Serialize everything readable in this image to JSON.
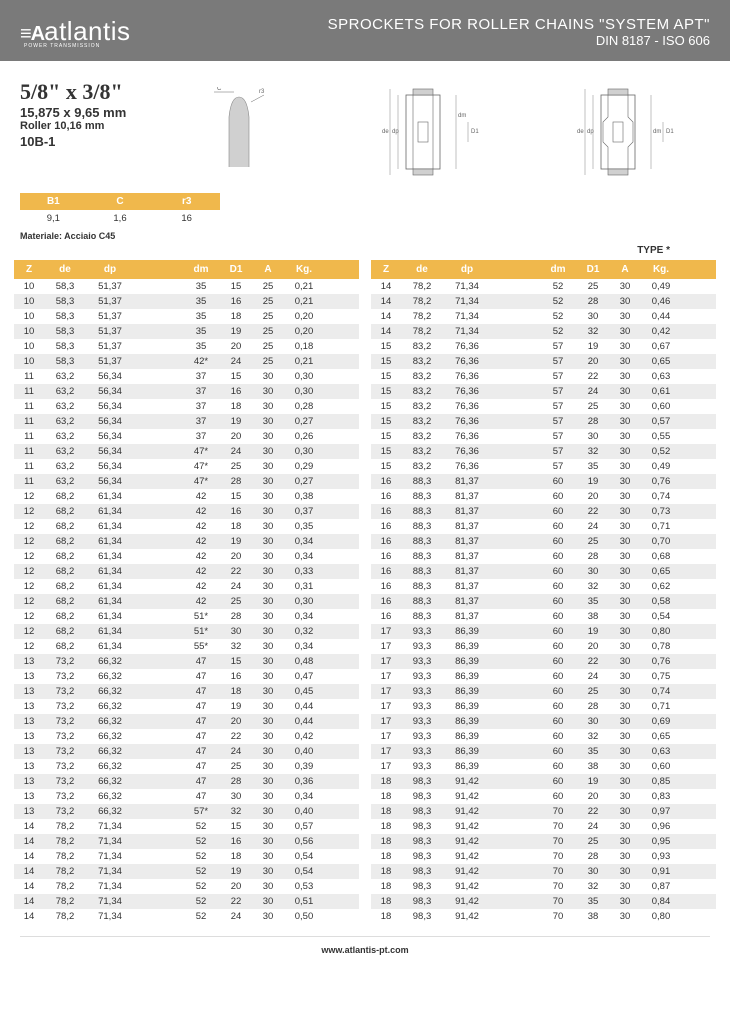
{
  "header": {
    "logo_text": "atlantis",
    "logo_mark": "≡A",
    "logo_sub": "POWER TRANSMISSION",
    "title_main": "SPROCKETS FOR ROLLER CHAINS \"SYSTEM APT\"",
    "title_sub": "DIN 8187 - ISO 606"
  },
  "spec": {
    "big": "5/8\" x 3/8\"",
    "med": "15,875 x 9,65 mm",
    "sm": "Roller 10,16 mm",
    "code": "10B-1"
  },
  "small_table": {
    "headers": [
      "B1",
      "C",
      "r3"
    ],
    "row": [
      "9,1",
      "1,6",
      "16"
    ]
  },
  "material": "Materiale: Acciaio C45",
  "type_label": "TYPE *",
  "table_headers": [
    "Z",
    "de",
    "dp",
    "",
    "dm",
    "D1",
    "A",
    "Kg."
  ],
  "left": [
    [
      "10",
      "58,3",
      "51,37",
      "",
      "35",
      "15",
      "25",
      "0,21"
    ],
    [
      "10",
      "58,3",
      "51,37",
      "",
      "35",
      "16",
      "25",
      "0,21"
    ],
    [
      "10",
      "58,3",
      "51,37",
      "",
      "35",
      "18",
      "25",
      "0,20"
    ],
    [
      "10",
      "58,3",
      "51,37",
      "",
      "35",
      "19",
      "25",
      "0,20"
    ],
    [
      "10",
      "58,3",
      "51,37",
      "",
      "35",
      "20",
      "25",
      "0,18"
    ],
    [
      "10",
      "58,3",
      "51,37",
      "",
      "42*",
      "24",
      "25",
      "0,21"
    ],
    [
      "11",
      "63,2",
      "56,34",
      "",
      "37",
      "15",
      "30",
      "0,30"
    ],
    [
      "11",
      "63,2",
      "56,34",
      "",
      "37",
      "16",
      "30",
      "0,30"
    ],
    [
      "11",
      "63,2",
      "56,34",
      "",
      "37",
      "18",
      "30",
      "0,28"
    ],
    [
      "11",
      "63,2",
      "56,34",
      "",
      "37",
      "19",
      "30",
      "0,27"
    ],
    [
      "11",
      "63,2",
      "56,34",
      "",
      "37",
      "20",
      "30",
      "0,26"
    ],
    [
      "11",
      "63,2",
      "56,34",
      "",
      "47*",
      "24",
      "30",
      "0,30"
    ],
    [
      "11",
      "63,2",
      "56,34",
      "",
      "47*",
      "25",
      "30",
      "0,29"
    ],
    [
      "11",
      "63,2",
      "56,34",
      "",
      "47*",
      "28",
      "30",
      "0,27"
    ],
    [
      "12",
      "68,2",
      "61,34",
      "",
      "42",
      "15",
      "30",
      "0,38"
    ],
    [
      "12",
      "68,2",
      "61,34",
      "",
      "42",
      "16",
      "30",
      "0,37"
    ],
    [
      "12",
      "68,2",
      "61,34",
      "",
      "42",
      "18",
      "30",
      "0,35"
    ],
    [
      "12",
      "68,2",
      "61,34",
      "",
      "42",
      "19",
      "30",
      "0,34"
    ],
    [
      "12",
      "68,2",
      "61,34",
      "",
      "42",
      "20",
      "30",
      "0,34"
    ],
    [
      "12",
      "68,2",
      "61,34",
      "",
      "42",
      "22",
      "30",
      "0,33"
    ],
    [
      "12",
      "68,2",
      "61,34",
      "",
      "42",
      "24",
      "30",
      "0,31"
    ],
    [
      "12",
      "68,2",
      "61,34",
      "",
      "42",
      "25",
      "30",
      "0,30"
    ],
    [
      "12",
      "68,2",
      "61,34",
      "",
      "51*",
      "28",
      "30",
      "0,34"
    ],
    [
      "12",
      "68,2",
      "61,34",
      "",
      "51*",
      "30",
      "30",
      "0,32"
    ],
    [
      "12",
      "68,2",
      "61,34",
      "",
      "55*",
      "32",
      "30",
      "0,34"
    ],
    [
      "13",
      "73,2",
      "66,32",
      "",
      "47",
      "15",
      "30",
      "0,48"
    ],
    [
      "13",
      "73,2",
      "66,32",
      "",
      "47",
      "16",
      "30",
      "0,47"
    ],
    [
      "13",
      "73,2",
      "66,32",
      "",
      "47",
      "18",
      "30",
      "0,45"
    ],
    [
      "13",
      "73,2",
      "66,32",
      "",
      "47",
      "19",
      "30",
      "0,44"
    ],
    [
      "13",
      "73,2",
      "66,32",
      "",
      "47",
      "20",
      "30",
      "0,44"
    ],
    [
      "13",
      "73,2",
      "66,32",
      "",
      "47",
      "22",
      "30",
      "0,42"
    ],
    [
      "13",
      "73,2",
      "66,32",
      "",
      "47",
      "24",
      "30",
      "0,40"
    ],
    [
      "13",
      "73,2",
      "66,32",
      "",
      "47",
      "25",
      "30",
      "0,39"
    ],
    [
      "13",
      "73,2",
      "66,32",
      "",
      "47",
      "28",
      "30",
      "0,36"
    ],
    [
      "13",
      "73,2",
      "66,32",
      "",
      "47",
      "30",
      "30",
      "0,34"
    ],
    [
      "13",
      "73,2",
      "66,32",
      "",
      "57*",
      "32",
      "30",
      "0,40"
    ],
    [
      "14",
      "78,2",
      "71,34",
      "",
      "52",
      "15",
      "30",
      "0,57"
    ],
    [
      "14",
      "78,2",
      "71,34",
      "",
      "52",
      "16",
      "30",
      "0,56"
    ],
    [
      "14",
      "78,2",
      "71,34",
      "",
      "52",
      "18",
      "30",
      "0,54"
    ],
    [
      "14",
      "78,2",
      "71,34",
      "",
      "52",
      "19",
      "30",
      "0,54"
    ],
    [
      "14",
      "78,2",
      "71,34",
      "",
      "52",
      "20",
      "30",
      "0,53"
    ],
    [
      "14",
      "78,2",
      "71,34",
      "",
      "52",
      "22",
      "30",
      "0,51"
    ],
    [
      "14",
      "78,2",
      "71,34",
      "",
      "52",
      "24",
      "30",
      "0,50"
    ]
  ],
  "right": [
    [
      "14",
      "78,2",
      "71,34",
      "",
      "52",
      "25",
      "30",
      "0,49"
    ],
    [
      "14",
      "78,2",
      "71,34",
      "",
      "52",
      "28",
      "30",
      "0,46"
    ],
    [
      "14",
      "78,2",
      "71,34",
      "",
      "52",
      "30",
      "30",
      "0,44"
    ],
    [
      "14",
      "78,2",
      "71,34",
      "",
      "52",
      "32",
      "30",
      "0,42"
    ],
    [
      "15",
      "83,2",
      "76,36",
      "",
      "57",
      "19",
      "30",
      "0,67"
    ],
    [
      "15",
      "83,2",
      "76,36",
      "",
      "57",
      "20",
      "30",
      "0,65"
    ],
    [
      "15",
      "83,2",
      "76,36",
      "",
      "57",
      "22",
      "30",
      "0,63"
    ],
    [
      "15",
      "83,2",
      "76,36",
      "",
      "57",
      "24",
      "30",
      "0,61"
    ],
    [
      "15",
      "83,2",
      "76,36",
      "",
      "57",
      "25",
      "30",
      "0,60"
    ],
    [
      "15",
      "83,2",
      "76,36",
      "",
      "57",
      "28",
      "30",
      "0,57"
    ],
    [
      "15",
      "83,2",
      "76,36",
      "",
      "57",
      "30",
      "30",
      "0,55"
    ],
    [
      "15",
      "83,2",
      "76,36",
      "",
      "57",
      "32",
      "30",
      "0,52"
    ],
    [
      "15",
      "83,2",
      "76,36",
      "",
      "57",
      "35",
      "30",
      "0,49"
    ],
    [
      "16",
      "88,3",
      "81,37",
      "",
      "60",
      "19",
      "30",
      "0,76"
    ],
    [
      "16",
      "88,3",
      "81,37",
      "",
      "60",
      "20",
      "30",
      "0,74"
    ],
    [
      "16",
      "88,3",
      "81,37",
      "",
      "60",
      "22",
      "30",
      "0,73"
    ],
    [
      "16",
      "88,3",
      "81,37",
      "",
      "60",
      "24",
      "30",
      "0,71"
    ],
    [
      "16",
      "88,3",
      "81,37",
      "",
      "60",
      "25",
      "30",
      "0,70"
    ],
    [
      "16",
      "88,3",
      "81,37",
      "",
      "60",
      "28",
      "30",
      "0,68"
    ],
    [
      "16",
      "88,3",
      "81,37",
      "",
      "60",
      "30",
      "30",
      "0,65"
    ],
    [
      "16",
      "88,3",
      "81,37",
      "",
      "60",
      "32",
      "30",
      "0,62"
    ],
    [
      "16",
      "88,3",
      "81,37",
      "",
      "60",
      "35",
      "30",
      "0,58"
    ],
    [
      "16",
      "88,3",
      "81,37",
      "",
      "60",
      "38",
      "30",
      "0,54"
    ],
    [
      "17",
      "93,3",
      "86,39",
      "",
      "60",
      "19",
      "30",
      "0,80"
    ],
    [
      "17",
      "93,3",
      "86,39",
      "",
      "60",
      "20",
      "30",
      "0,78"
    ],
    [
      "17",
      "93,3",
      "86,39",
      "",
      "60",
      "22",
      "30",
      "0,76"
    ],
    [
      "17",
      "93,3",
      "86,39",
      "",
      "60",
      "24",
      "30",
      "0,75"
    ],
    [
      "17",
      "93,3",
      "86,39",
      "",
      "60",
      "25",
      "30",
      "0,74"
    ],
    [
      "17",
      "93,3",
      "86,39",
      "",
      "60",
      "28",
      "30",
      "0,71"
    ],
    [
      "17",
      "93,3",
      "86,39",
      "",
      "60",
      "30",
      "30",
      "0,69"
    ],
    [
      "17",
      "93,3",
      "86,39",
      "",
      "60",
      "32",
      "30",
      "0,65"
    ],
    [
      "17",
      "93,3",
      "86,39",
      "",
      "60",
      "35",
      "30",
      "0,63"
    ],
    [
      "17",
      "93,3",
      "86,39",
      "",
      "60",
      "38",
      "30",
      "0,60"
    ],
    [
      "18",
      "98,3",
      "91,42",
      "",
      "60",
      "19",
      "30",
      "0,85"
    ],
    [
      "18",
      "98,3",
      "91,42",
      "",
      "60",
      "20",
      "30",
      "0,83"
    ],
    [
      "18",
      "98,3",
      "91,42",
      "",
      "70",
      "22",
      "30",
      "0,97"
    ],
    [
      "18",
      "98,3",
      "91,42",
      "",
      "70",
      "24",
      "30",
      "0,96"
    ],
    [
      "18",
      "98,3",
      "91,42",
      "",
      "70",
      "25",
      "30",
      "0,95"
    ],
    [
      "18",
      "98,3",
      "91,42",
      "",
      "70",
      "28",
      "30",
      "0,93"
    ],
    [
      "18",
      "98,3",
      "91,42",
      "",
      "70",
      "30",
      "30",
      "0,91"
    ],
    [
      "18",
      "98,3",
      "91,42",
      "",
      "70",
      "32",
      "30",
      "0,87"
    ],
    [
      "18",
      "98,3",
      "91,42",
      "",
      "70",
      "35",
      "30",
      "0,84"
    ],
    [
      "18",
      "98,3",
      "91,42",
      "",
      "70",
      "38",
      "30",
      "0,80"
    ]
  ],
  "footer": "www.atlantis-pt.com",
  "colors": {
    "header_bg": "#7a7a7a",
    "accent": "#f0b84c",
    "row_alt": "#ececec"
  }
}
